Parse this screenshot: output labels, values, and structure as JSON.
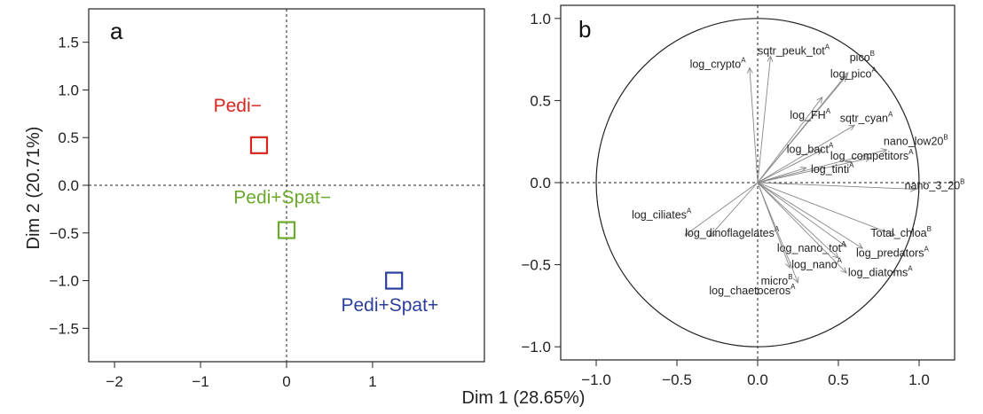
{
  "figure": {
    "xlabel": "Dim 1 (28.65%)",
    "ylabel": "Dim 2 (20.71%)"
  },
  "chart_data": [
    {
      "type": "scatter",
      "panel": "a",
      "xlim": [
        -2.3,
        2.3
      ],
      "ylim": [
        -1.85,
        1.85
      ],
      "x_ticks": [
        -2,
        -1,
        0,
        1
      ],
      "x_tick_labels": [
        "−2",
        "−1",
        "0",
        "1"
      ],
      "y_ticks": [
        1.5,
        1.0,
        0.5,
        0.0,
        -0.5,
        -1.0,
        -1.5
      ],
      "y_tick_labels": [
        "1.5",
        "1.0",
        "0.5",
        "0.0",
        "−0.5",
        "−1.0",
        "−1.5"
      ],
      "reference_lines": {
        "x": 0,
        "y": 0,
        "style": "dashed"
      },
      "points": [
        {
          "label": "Pedi−",
          "x": -0.32,
          "y": 0.42,
          "color": "#d7261e",
          "label_dx": -0.25,
          "label_dy": 0.35
        },
        {
          "label": "Pedi+Spat−",
          "x": 0.0,
          "y": -0.47,
          "color": "#6aaa2c",
          "label_dx": -0.05,
          "label_dy": 0.28
        },
        {
          "label": "Pedi+Spat+",
          "x": 1.25,
          "y": -1.0,
          "color": "#2a3f9d",
          "label_dx": -0.05,
          "label_dy": -0.32
        }
      ]
    },
    {
      "type": "correlation-circle",
      "panel": "b",
      "xlim": [
        -1.22,
        1.22
      ],
      "ylim": [
        -1.08,
        1.08
      ],
      "x_ticks": [
        -1.0,
        -0.5,
        0.0,
        0.5,
        1.0
      ],
      "x_tick_labels": [
        "−1.0",
        "−0.5",
        "0.0",
        "0.5",
        "1.0"
      ],
      "y_ticks": [
        1.0,
        0.5,
        0.0,
        -0.5,
        -1.0
      ],
      "y_tick_labels": [
        "1.0",
        "0.5",
        "0.0",
        "−0.5",
        "−1.0"
      ],
      "reference_lines": {
        "x": 0,
        "y": 0,
        "style": "dashed"
      },
      "circle_radius": 1.0,
      "arrow_color": "#888888",
      "variables": [
        {
          "name": "sqtr_peuk_tot",
          "sup": "A",
          "x": 0.08,
          "y": 0.77,
          "lx": 0.0,
          "ly": 0.78,
          "anchor": "start"
        },
        {
          "name": "pico",
          "sup": "B",
          "x": 0.56,
          "y": 0.67,
          "lx": 0.57,
          "ly": 0.74,
          "anchor": "start"
        },
        {
          "name": "log_crypto",
          "sup": "A",
          "x": -0.05,
          "y": 0.7,
          "lx": -0.42,
          "ly": 0.7,
          "anchor": "start"
        },
        {
          "name": "log_pico",
          "sup": "A",
          "x": 0.55,
          "y": 0.65,
          "lx": 0.45,
          "ly": 0.64,
          "anchor": "start"
        },
        {
          "name": "log_FH",
          "sup": "A",
          "x": 0.4,
          "y": 0.52,
          "lx": 0.2,
          "ly": 0.39,
          "anchor": "start"
        },
        {
          "name": "sqtr_cyan",
          "sup": "A",
          "x": 0.6,
          "y": 0.35,
          "lx": 0.51,
          "ly": 0.37,
          "anchor": "start"
        },
        {
          "name": "log_bact",
          "sup": "A",
          "x": 0.4,
          "y": 0.2,
          "lx": 0.18,
          "ly": 0.18,
          "anchor": "start"
        },
        {
          "name": "nano_low20",
          "sup": "B",
          "x": 0.8,
          "y": 0.2,
          "lx": 0.78,
          "ly": 0.23,
          "anchor": "start"
        },
        {
          "name": "log_competitors",
          "sup": "A",
          "x": 0.7,
          "y": 0.15,
          "lx": 0.45,
          "ly": 0.14,
          "anchor": "start"
        },
        {
          "name": "log_tinti",
          "sup": "A",
          "x": 0.3,
          "y": 0.09,
          "lx": 0.33,
          "ly": 0.06,
          "anchor": "start"
        },
        {
          "name": "nano_3_20",
          "sup": "B",
          "x": 0.98,
          "y": -0.04,
          "lx": 0.91,
          "ly": -0.04,
          "anchor": "start"
        },
        {
          "name": "log_ciliates",
          "sup": "A",
          "x": -0.45,
          "y": -0.32,
          "lx": -0.78,
          "ly": -0.22,
          "anchor": "start"
        },
        {
          "name": "log_dinoflagelates",
          "sup": "A",
          "x": -0.3,
          "y": -0.33,
          "lx": -0.45,
          "ly": -0.33,
          "anchor": "start"
        },
        {
          "name": "Total_chloa",
          "sup": "B",
          "x": 0.85,
          "y": -0.32,
          "lx": 0.7,
          "ly": -0.33,
          "anchor": "start"
        },
        {
          "name": "log_nano_tot",
          "sup": "A",
          "x": 0.55,
          "y": -0.39,
          "lx": 0.12,
          "ly": -0.42,
          "anchor": "start"
        },
        {
          "name": "log_predators",
          "sup": "A",
          "x": 0.65,
          "y": -0.4,
          "lx": 0.61,
          "ly": -0.45,
          "anchor": "start"
        },
        {
          "name": "log_nano",
          "sup": "A",
          "x": 0.5,
          "y": -0.46,
          "lx": 0.21,
          "ly": -0.52,
          "anchor": "start"
        },
        {
          "name": "log_diatoms",
          "sup": "A",
          "x": 0.55,
          "y": -0.55,
          "lx": 0.56,
          "ly": -0.57,
          "anchor": "start"
        },
        {
          "name": "micro",
          "sup": "B",
          "x": 0.25,
          "y": -0.61,
          "lx": 0.02,
          "ly": -0.62,
          "anchor": "start"
        },
        {
          "name": "log_chaetoceros",
          "sup": "A",
          "x": 0.2,
          "y": -0.52,
          "lx": -0.3,
          "ly": -0.68,
          "anchor": "start"
        }
      ]
    }
  ]
}
